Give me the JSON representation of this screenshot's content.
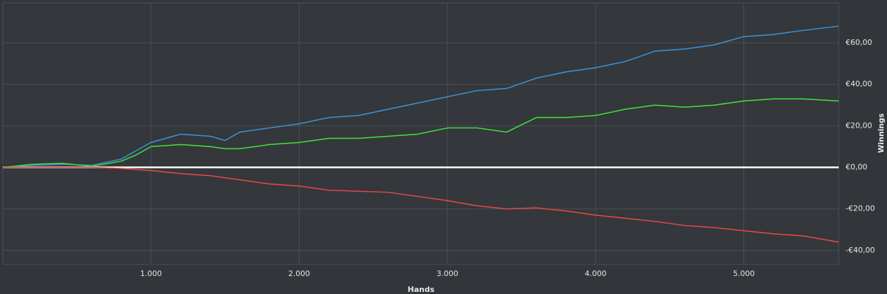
{
  "chart_data": {
    "type": "line",
    "x_label": "Hands",
    "y_label": "Winnings",
    "x": [
      0,
      200,
      400,
      600,
      800,
      900,
      1000,
      1200,
      1400,
      1500,
      1600,
      1800,
      2000,
      2200,
      2400,
      2600,
      2800,
      3000,
      3200,
      3400,
      3600,
      3800,
      4000,
      4200,
      4400,
      4600,
      4800,
      5000,
      5200,
      5400,
      5640
    ],
    "series": [
      {
        "color": "#3b8fd6",
        "values": [
          0,
          1,
          1.5,
          1,
          4,
          8,
          12,
          16,
          15,
          13,
          17,
          19,
          21,
          24,
          25,
          28,
          31,
          34,
          37,
          38,
          43,
          46,
          48,
          51,
          56,
          57,
          59,
          63,
          64,
          66,
          68
        ]
      },
      {
        "color": "#3fdc3f",
        "values": [
          0,
          1.5,
          2,
          0.5,
          3,
          6,
          10,
          11,
          10,
          9,
          9,
          11,
          12,
          14,
          14,
          15,
          16,
          19,
          19,
          17,
          24,
          24,
          25,
          28,
          30,
          29,
          30,
          32,
          33,
          33,
          32
        ]
      },
      {
        "color": "#e04848",
        "values": [
          0,
          0,
          0,
          0,
          -0.5,
          -1,
          -1.5,
          -3,
          -4,
          -5,
          -6,
          -8,
          -9,
          -11,
          -11.5,
          -12,
          -14,
          -16,
          -18.5,
          -20,
          -19.5,
          -21,
          -23,
          -24.5,
          -26,
          -28,
          -29,
          -30.5,
          -32,
          -33,
          -36
        ]
      }
    ],
    "xlim": [
      0,
      5640
    ],
    "ylim": [
      -46.7,
      79.3
    ],
    "xticks": [
      {
        "value": 1000,
        "label": "1.000"
      },
      {
        "value": 2000,
        "label": "2.000"
      },
      {
        "value": 3000,
        "label": "3.000"
      },
      {
        "value": 4000,
        "label": "4.000"
      },
      {
        "value": 5000,
        "label": "5.000"
      }
    ],
    "yticks": [
      {
        "value": -40,
        "label": "-€40,00"
      },
      {
        "value": -20,
        "label": "-€20,00"
      },
      {
        "value": 0,
        "label": "€0,00"
      },
      {
        "value": 20,
        "label": "€20,00"
      },
      {
        "value": 40,
        "label": "€40,00"
      },
      {
        "value": 60,
        "label": "€60,00"
      }
    ],
    "grid": true,
    "zero_line": true
  }
}
